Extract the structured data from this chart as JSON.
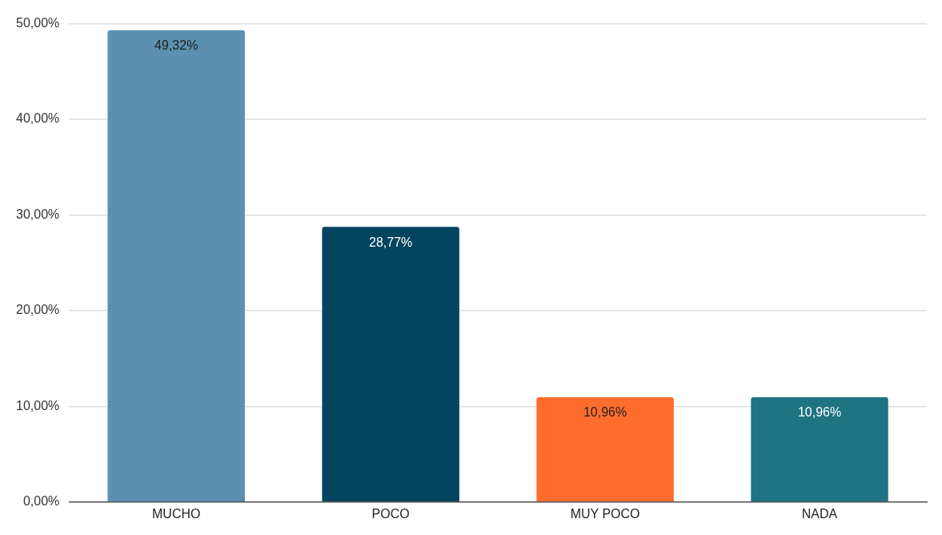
{
  "chart_data": {
    "type": "bar",
    "categories": [
      "MUCHO",
      "POCO",
      "MUY POCO",
      "NADA"
    ],
    "values": [
      49.32,
      28.77,
      10.96,
      10.96
    ],
    "colors": [
      "#5b90b0",
      "#03445e",
      "#ff6d2e",
      "#1f7383"
    ],
    "value_labels": [
      "49,32%",
      "28,77%",
      "10,96%",
      "10,96%"
    ],
    "ylim": [
      0,
      50
    ],
    "yticks": [
      {
        "value": 0,
        "label": "0,00%"
      },
      {
        "value": 10,
        "label": "10,00%"
      },
      {
        "value": 20,
        "label": "20,00%"
      },
      {
        "value": 30,
        "label": "30,00%"
      },
      {
        "value": 40,
        "label": "40,00%"
      },
      {
        "value": 50,
        "label": "50,00%"
      }
    ],
    "grid": "y",
    "legend": false
  }
}
